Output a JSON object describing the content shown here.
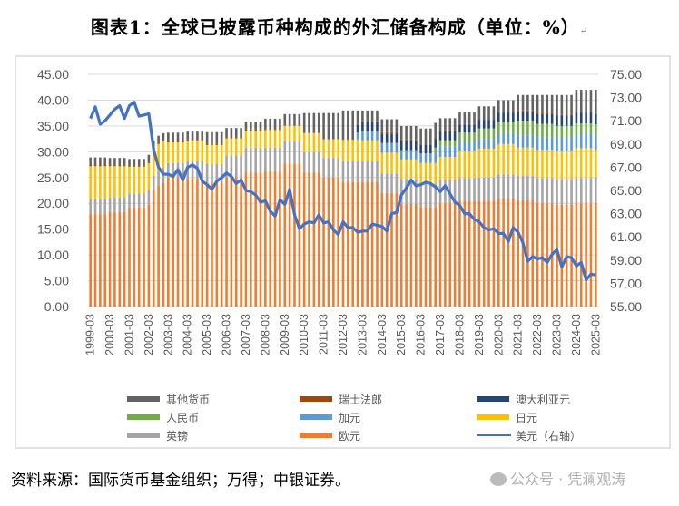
{
  "title": "图表1：全球已披露币种构成的外汇储备构成（单位：%）",
  "footer": "资料来源：国际货币基金组织；万得；中银证券。",
  "watermark": "公众号 · 凭澜观涛",
  "chart_data": {
    "type": "bar",
    "stacked": true,
    "title": "图表1：全球已披露币种构成的外汇储备构成（单位：%）",
    "x_tick_labels": [
      "1999-03",
      "2000-03",
      "2001-03",
      "2002-03",
      "2003-03",
      "2004-03",
      "2005-03",
      "2006-03",
      "2007-03",
      "2008-03",
      "2009-03",
      "2010-03",
      "2011-03",
      "2012-03",
      "2013-03",
      "2014-03",
      "2015-03",
      "2016-03",
      "2017-03",
      "2018-03",
      "2019-03",
      "2020-03",
      "2021-03",
      "2022-03",
      "2023-03",
      "2024-03",
      "2025-03"
    ],
    "x_frequency": "quarterly",
    "y_left": {
      "ylim": [
        0,
        45
      ],
      "ticks": [
        "0.00",
        "5.00",
        "10.00",
        "15.00",
        "20.00",
        "25.00",
        "30.00",
        "35.00",
        "40.00",
        "45.00"
      ]
    },
    "y_right": {
      "ylim": [
        55,
        75
      ],
      "ticks": [
        "55.00",
        "57.00",
        "59.00",
        "61.00",
        "63.00",
        "65.00",
        "67.00",
        "69.00",
        "71.00",
        "73.00",
        "75.00"
      ]
    },
    "grid": true,
    "legend_placement": "bottom",
    "series": [
      {
        "name": "欧元",
        "axis": "left",
        "type": "bar",
        "color": "#ED7D31",
        "values": [
          17.9,
          17.9,
          17.9,
          17.9,
          18.3,
          18.3,
          18.3,
          18.3,
          19.2,
          19.2,
          19.2,
          19.2,
          19.8,
          22.5,
          23.5,
          24.0,
          25.0,
          25.0,
          25.0,
          25.0,
          24.8,
          24.8,
          24.8,
          24.8,
          24.0,
          24.0,
          24.0,
          24.0,
          25.0,
          25.0,
          25.0,
          25.0,
          26.0,
          26.0,
          26.0,
          26.0,
          26.2,
          26.2,
          26.2,
          26.2,
          27.7,
          27.7,
          27.7,
          27.7,
          26.0,
          26.0,
          26.0,
          26.0,
          25.0,
          25.0,
          25.0,
          25.0,
          24.2,
          24.2,
          24.2,
          24.2,
          24.2,
          24.2,
          24.2,
          24.2,
          22.0,
          22.0,
          22.0,
          22.0,
          19.9,
          19.9,
          19.9,
          19.9,
          19.3,
          19.3,
          19.3,
          19.3,
          20.0,
          20.0,
          20.0,
          20.0,
          20.5,
          20.5,
          20.5,
          20.5,
          20.5,
          20.5,
          20.5,
          20.5,
          21.0,
          21.0,
          21.0,
          21.0,
          20.6,
          20.6,
          20.6,
          20.6,
          20.0,
          20.0,
          20.0,
          20.0,
          19.8,
          19.8,
          19.8,
          19.8,
          20.0,
          20.0,
          20.0,
          20.0,
          20.1
        ]
      },
      {
        "name": "英镑",
        "axis": "left",
        "type": "bar",
        "color": "#A5A5A5",
        "values": [
          2.9,
          2.9,
          2.9,
          2.9,
          2.8,
          2.8,
          2.8,
          2.8,
          2.7,
          2.7,
          2.7,
          2.7,
          2.8,
          2.8,
          2.8,
          2.8,
          2.8,
          2.8,
          2.8,
          2.8,
          3.4,
          3.4,
          3.4,
          3.4,
          3.6,
          3.6,
          3.6,
          3.6,
          4.3,
          4.3,
          4.3,
          4.3,
          4.8,
          4.8,
          4.8,
          4.8,
          4.6,
          4.6,
          4.6,
          4.6,
          4.3,
          4.3,
          4.3,
          4.3,
          3.9,
          3.9,
          3.9,
          3.9,
          3.8,
          3.8,
          3.8,
          3.8,
          4.0,
          4.0,
          4.0,
          4.0,
          4.0,
          4.0,
          4.0,
          4.0,
          3.8,
          3.8,
          3.8,
          3.8,
          4.8,
          4.8,
          4.8,
          4.8,
          4.5,
          4.5,
          4.5,
          4.5,
          4.5,
          4.5,
          4.5,
          4.5,
          4.4,
          4.4,
          4.4,
          4.4,
          4.5,
          4.5,
          4.5,
          4.5,
          4.6,
          4.6,
          4.6,
          4.6,
          4.7,
          4.7,
          4.7,
          4.7,
          4.9,
          4.9,
          4.9,
          4.9,
          4.8,
          4.8,
          4.8,
          4.8,
          4.9,
          4.9,
          4.9,
          4.9,
          5.0
        ]
      },
      {
        "name": "日元",
        "axis": "left",
        "type": "bar",
        "color": "#FFC000",
        "values": [
          6.4,
          6.4,
          6.4,
          6.4,
          6.1,
          6.1,
          6.1,
          6.1,
          5.2,
          5.2,
          5.2,
          5.2,
          5.2,
          5.2,
          5.2,
          5.2,
          4.0,
          4.0,
          4.0,
          4.0,
          4.0,
          4.0,
          4.0,
          4.0,
          3.7,
          3.7,
          3.7,
          3.7,
          3.3,
          3.3,
          3.3,
          3.3,
          3.3,
          3.3,
          3.3,
          3.3,
          3.4,
          3.4,
          3.4,
          3.4,
          3.0,
          3.0,
          3.0,
          3.0,
          3.7,
          3.7,
          3.7,
          3.7,
          3.6,
          3.6,
          3.6,
          3.6,
          4.1,
          4.1,
          4.1,
          4.1,
          4.0,
          4.0,
          4.0,
          4.0,
          4.0,
          4.0,
          4.0,
          4.0,
          3.8,
          3.8,
          3.8,
          3.8,
          4.0,
          4.0,
          4.0,
          4.0,
          4.5,
          4.5,
          4.5,
          4.5,
          5.2,
          5.2,
          5.2,
          5.2,
          5.6,
          5.6,
          5.6,
          5.6,
          5.9,
          5.9,
          5.9,
          5.9,
          5.5,
          5.5,
          5.5,
          5.5,
          5.5,
          5.5,
          5.5,
          5.5,
          5.5,
          5.5,
          5.5,
          5.5,
          5.8,
          5.8,
          5.8,
          5.8,
          5.2
        ]
      },
      {
        "name": "加元",
        "axis": "left",
        "type": "bar",
        "color": "#5B9BD5",
        "values": [
          0,
          0,
          0,
          0,
          0,
          0,
          0,
          0,
          0,
          0,
          0,
          0,
          0,
          0,
          0,
          0,
          0,
          0,
          0,
          0,
          0,
          0,
          0,
          0,
          0,
          0,
          0,
          0,
          0,
          0,
          0,
          0,
          0,
          0,
          0,
          0,
          0,
          0,
          0,
          0,
          0,
          0,
          0,
          0,
          0,
          0,
          0,
          0,
          0,
          0,
          0,
          0,
          0,
          0,
          0,
          1.4,
          1.8,
          1.8,
          1.8,
          1.8,
          1.9,
          1.9,
          1.9,
          1.9,
          1.8,
          1.8,
          1.8,
          1.8,
          1.9,
          1.9,
          1.9,
          1.9,
          2.0,
          2.0,
          2.0,
          2.0,
          1.8,
          1.8,
          1.8,
          1.8,
          1.9,
          1.9,
          1.9,
          1.9,
          2.1,
          2.1,
          2.1,
          2.1,
          2.4,
          2.4,
          2.4,
          2.4,
          2.4,
          2.4,
          2.4,
          2.4,
          2.6,
          2.6,
          2.6,
          2.6,
          2.7,
          2.7,
          2.7,
          2.7,
          2.8
        ]
      },
      {
        "name": "人民币",
        "axis": "left",
        "type": "bar",
        "color": "#70AD47",
        "values": [
          0,
          0,
          0,
          0,
          0,
          0,
          0,
          0,
          0,
          0,
          0,
          0,
          0,
          0,
          0,
          0,
          0,
          0,
          0,
          0,
          0,
          0,
          0,
          0,
          0,
          0,
          0,
          0,
          0,
          0,
          0,
          0,
          0,
          0,
          0,
          0,
          0,
          0,
          0,
          0,
          0,
          0,
          0,
          0,
          0,
          0,
          0,
          0,
          0,
          0,
          0,
          0,
          0,
          0,
          0,
          0,
          0,
          0,
          0,
          0,
          0,
          0,
          0,
          0,
          0,
          0,
          0,
          0,
          0,
          0,
          0,
          1.1,
          1.2,
          1.2,
          1.2,
          1.2,
          1.8,
          1.8,
          1.8,
          1.8,
          2.0,
          2.0,
          2.0,
          2.0,
          2.2,
          2.2,
          2.2,
          2.2,
          2.8,
          2.8,
          2.8,
          2.8,
          2.6,
          2.6,
          2.6,
          2.6,
          2.3,
          2.3,
          2.3,
          2.3,
          2.1,
          2.1,
          2.1,
          2.1,
          2.2
        ]
      },
      {
        "name": "澳大利亚元",
        "axis": "left",
        "type": "bar",
        "color": "#264478",
        "values": [
          0,
          0,
          0,
          0,
          0,
          0,
          0,
          0,
          0,
          0,
          0,
          0,
          0,
          0,
          0,
          0,
          0,
          0,
          0,
          0,
          0,
          0,
          0,
          0,
          0,
          0,
          0,
          0,
          0,
          0,
          0,
          0,
          0,
          0,
          0,
          0,
          0,
          0,
          0,
          0,
          0,
          0,
          0,
          0,
          0,
          0,
          0,
          0,
          0,
          0,
          0,
          0,
          0,
          0,
          0,
          1.5,
          1.8,
          1.8,
          1.8,
          1.8,
          1.8,
          1.8,
          1.8,
          1.8,
          1.8,
          1.8,
          1.8,
          1.8,
          1.7,
          1.7,
          1.7,
          1.7,
          1.8,
          1.8,
          1.8,
          1.8,
          1.6,
          1.6,
          1.6,
          1.6,
          1.7,
          1.7,
          1.7,
          1.7,
          1.8,
          1.8,
          1.8,
          1.8,
          1.8,
          1.8,
          1.8,
          1.8,
          2.0,
          2.0,
          2.0,
          2.0,
          2.0,
          2.0,
          2.0,
          2.0,
          2.1,
          2.1,
          2.1,
          2.1,
          2.1
        ]
      },
      {
        "name": "瑞士法郎",
        "axis": "left",
        "type": "bar",
        "color": "#9E480E",
        "values": [
          0.3,
          0.3,
          0.3,
          0.3,
          0.3,
          0.3,
          0.3,
          0.3,
          0.3,
          0.3,
          0.3,
          0.3,
          0.3,
          0.3,
          0.3,
          0.3,
          0.3,
          0.3,
          0.3,
          0.3,
          0.3,
          0.3,
          0.3,
          0.3,
          0.3,
          0.3,
          0.3,
          0.3,
          0.2,
          0.2,
          0.2,
          0.2,
          0.2,
          0.2,
          0.2,
          0.2,
          0.2,
          0.2,
          0.2,
          0.2,
          0.1,
          0.1,
          0.1,
          0.1,
          0.1,
          0.1,
          0.1,
          0.1,
          0.1,
          0.1,
          0.1,
          0.1,
          0.2,
          0.2,
          0.2,
          0.2,
          0.2,
          0.2,
          0.2,
          0.2,
          0.3,
          0.3,
          0.3,
          0.3,
          0.3,
          0.3,
          0.3,
          0.3,
          0.2,
          0.2,
          0.2,
          0.2,
          0.2,
          0.2,
          0.2,
          0.2,
          0.1,
          0.1,
          0.1,
          0.1,
          0.1,
          0.1,
          0.1,
          0.1,
          0.2,
          0.2,
          0.2,
          0.2,
          0.2,
          0.2,
          0.2,
          0.2,
          0.2,
          0.2,
          0.2,
          0.2,
          0.2,
          0.2,
          0.2,
          0.2,
          0.2,
          0.2,
          0.2,
          0.2,
          0.2
        ]
      },
      {
        "name": "其他货币",
        "axis": "left",
        "type": "bar",
        "color": "#636363",
        "values": [
          1.4,
          1.4,
          1.4,
          1.4,
          1.3,
          1.3,
          1.3,
          1.3,
          1.2,
          1.2,
          1.2,
          1.2,
          1.3,
          1.3,
          1.3,
          1.3,
          1.6,
          1.6,
          1.6,
          1.6,
          1.4,
          1.4,
          1.4,
          1.4,
          2.2,
          2.2,
          2.2,
          2.2,
          1.8,
          1.8,
          1.8,
          1.8,
          1.5,
          1.5,
          1.5,
          1.5,
          2.0,
          2.0,
          2.0,
          2.0,
          2.2,
          2.2,
          2.2,
          2.2,
          3.8,
          3.8,
          3.8,
          3.8,
          5.0,
          5.0,
          5.0,
          5.0,
          5.5,
          5.5,
          5.5,
          2.6,
          2.0,
          2.0,
          2.0,
          2.0,
          2.5,
          2.5,
          2.5,
          2.5,
          2.6,
          2.6,
          2.6,
          2.6,
          2.9,
          2.9,
          2.9,
          2.9,
          2.3,
          2.3,
          2.3,
          2.3,
          2.2,
          2.2,
          2.2,
          2.2,
          2.5,
          2.5,
          2.5,
          2.5,
          2.2,
          2.2,
          2.2,
          2.2,
          3.0,
          3.0,
          3.0,
          3.0,
          3.4,
          3.4,
          3.4,
          3.4,
          3.8,
          3.8,
          3.8,
          3.8,
          4.2,
          4.2,
          4.2,
          4.2,
          4.4
        ]
      },
      {
        "name": "美元（右轴）",
        "axis": "right",
        "type": "line",
        "color": "#4472C4",
        "values": [
          71.2,
          72.2,
          70.7,
          71.0,
          71.5,
          72.0,
          72.3,
          71.2,
          72.3,
          72.6,
          71.4,
          71.5,
          71.6,
          68.5,
          67.0,
          66.4,
          66.4,
          66.2,
          66.8,
          65.9,
          67.0,
          67.2,
          66.9,
          65.8,
          65.5,
          65.1,
          65.8,
          66.1,
          66.5,
          66.2,
          65.6,
          65.9,
          65.0,
          64.9,
          64.6,
          64.0,
          64.1,
          63.2,
          62.8,
          64.2,
          63.8,
          65.1,
          62.9,
          61.7,
          62.1,
          62.3,
          62.2,
          62.9,
          62.2,
          62.3,
          61.6,
          61.2,
          62.3,
          61.8,
          61.8,
          61.4,
          61.5,
          61.5,
          62.1,
          62.0,
          61.9,
          61.5,
          63.0,
          63.1,
          64.6,
          65.2,
          65.9,
          65.4,
          65.5,
          65.7,
          65.6,
          65.3,
          64.9,
          65.4,
          64.7,
          64.0,
          63.7,
          63.0,
          63.0,
          62.5,
          62.3,
          61.8,
          61.6,
          61.7,
          61.3,
          61.3,
          60.6,
          61.8,
          61.4,
          60.5,
          58.9,
          59.3,
          59.1,
          59.2,
          58.8,
          59.5,
          59.9,
          58.4,
          59.3,
          59.2,
          58.5,
          58.8,
          57.3,
          57.8,
          57.7
        ]
      }
    ],
    "legend": [
      "其他货币",
      "瑞士法郎",
      "澳大利亚元",
      "人民币",
      "加元",
      "日元",
      "英镑",
      "欧元",
      "美元（右轴）"
    ]
  }
}
